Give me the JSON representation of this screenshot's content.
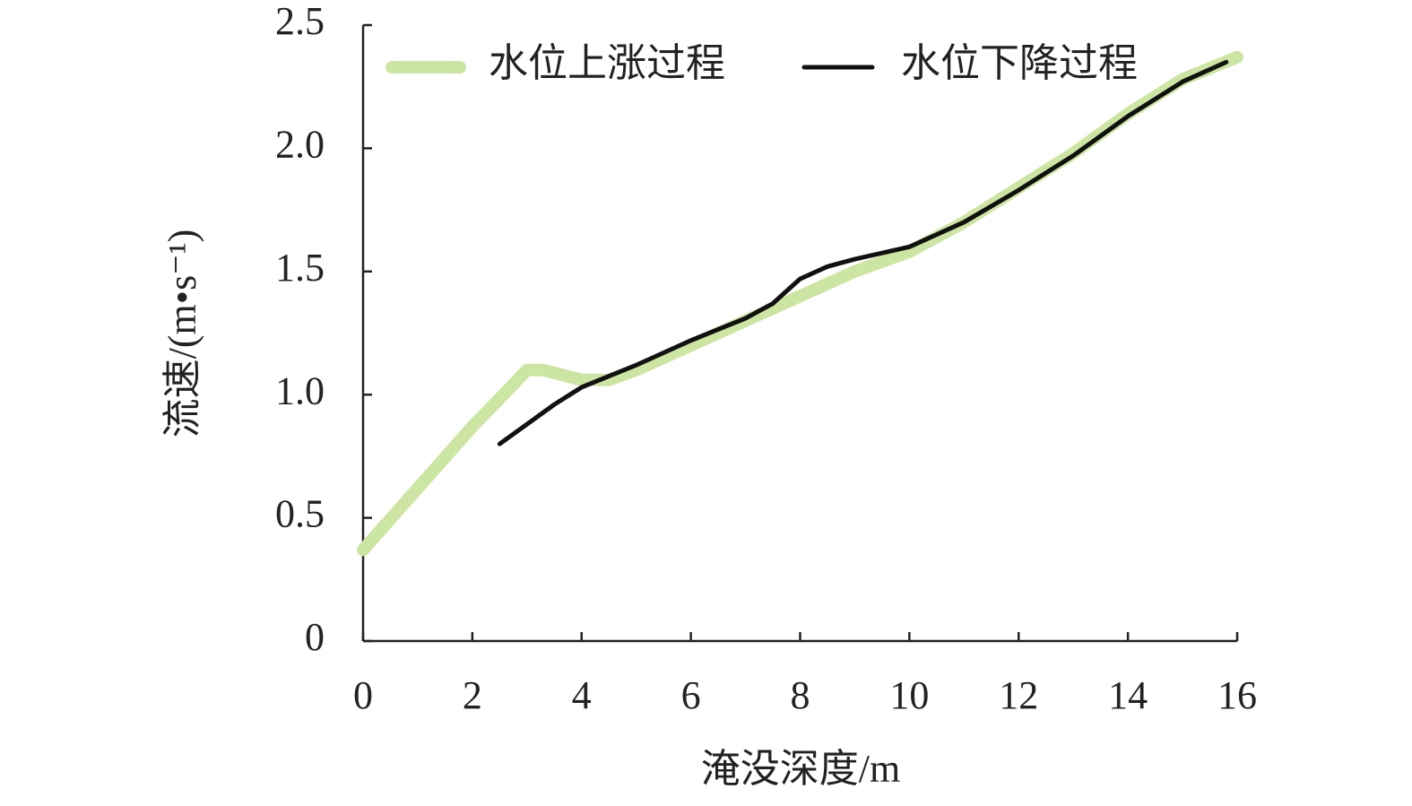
{
  "chart_data": {
    "type": "line",
    "x_label": "淹没深度/m",
    "y_label": "流速/(m•s⁻¹)",
    "xlim": [
      0,
      16
    ],
    "xticks": [
      0,
      2,
      4,
      6,
      8,
      10,
      12,
      14,
      16
    ],
    "ylim": [
      0,
      2.5
    ],
    "yticks": [
      0,
      0.5,
      {
        "value": 1,
        "label": "1.0"
      },
      1.5,
      {
        "value": 2,
        "label": "2.0"
      },
      2.5
    ],
    "legend": "top-left",
    "series": [
      {
        "name": "水位上涨过程",
        "color": "#cde5a2",
        "width": 14,
        "x": [
          0,
          1,
          2,
          2.7,
          3,
          3.3,
          4,
          4.5,
          5,
          6,
          7,
          8,
          9,
          10,
          11,
          12,
          13,
          14,
          15,
          16
        ],
        "values": [
          0.37,
          0.62,
          0.87,
          1.03,
          1.1,
          1.1,
          1.06,
          1.06,
          1.1,
          1.2,
          1.3,
          1.4,
          1.5,
          1.58,
          1.7,
          1.84,
          1.98,
          2.14,
          2.28,
          2.37
        ]
      },
      {
        "name": "水位下降过程",
        "color": "#111111",
        "width": 5,
        "x": [
          2.5,
          3,
          3.5,
          4,
          5,
          6,
          7,
          7.5,
          8,
          8.5,
          9,
          10,
          11,
          12,
          13,
          14,
          15,
          15.8
        ],
        "values": [
          0.8,
          0.88,
          0.96,
          1.03,
          1.12,
          1.22,
          1.31,
          1.37,
          1.47,
          1.52,
          1.55,
          1.6,
          1.7,
          1.83,
          1.97,
          2.13,
          2.27,
          2.35
        ]
      }
    ]
  }
}
